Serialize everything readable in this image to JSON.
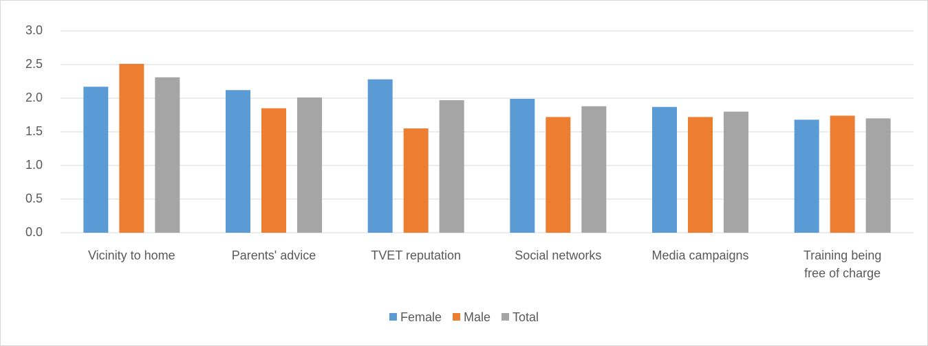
{
  "chart_data": {
    "type": "bar",
    "categories": [
      "Vicinity to home",
      "Parents' advice",
      "TVET reputation",
      "Social networks",
      "Media campaigns",
      "Training being free of charge"
    ],
    "series": [
      {
        "name": "Female",
        "color": "#5b9bd5",
        "values": [
          2.17,
          2.12,
          2.28,
          1.99,
          1.87,
          1.68
        ]
      },
      {
        "name": "Male",
        "color": "#ed7d31",
        "values": [
          2.51,
          1.85,
          1.55,
          1.72,
          1.72,
          1.74
        ]
      },
      {
        "name": "Total",
        "color": "#a5a5a5",
        "values": [
          2.31,
          2.01,
          1.97,
          1.88,
          1.8,
          1.7
        ]
      }
    ],
    "ylim": [
      0,
      3
    ],
    "yticks": [
      {
        "value": 0,
        "label": "0.0"
      },
      {
        "value": 0.5,
        "label": "0.5"
      },
      {
        "value": 1,
        "label": "1.0"
      },
      {
        "value": 1.5,
        "label": "1.5"
      },
      {
        "value": 2,
        "label": "2.0"
      },
      {
        "value": 2.5,
        "label": "2.5"
      },
      {
        "value": 3,
        "label": "3.0"
      }
    ],
    "grid": true,
    "legend": "bottom"
  }
}
